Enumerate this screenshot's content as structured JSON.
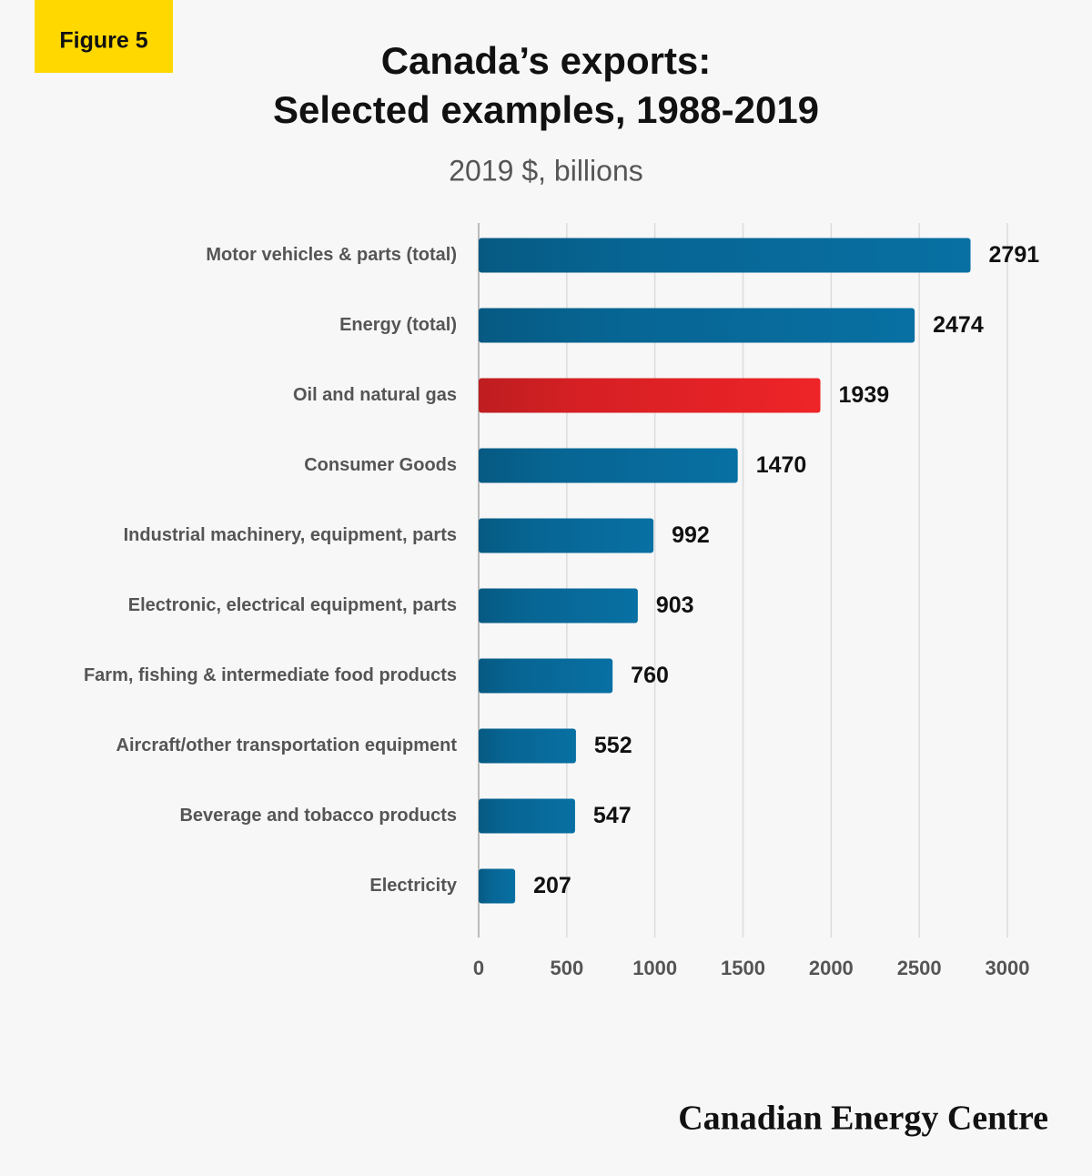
{
  "badge": "Figure 5",
  "footer": "Canadian Energy Centre",
  "chart_data": {
    "type": "bar",
    "orientation": "horizontal",
    "title": [
      "Canada’s exports:",
      "Selected examples, 1988-2019"
    ],
    "subtitle": "2019 $, billions",
    "categories": [
      "Motor vehicles & parts (total)",
      "Energy (total)",
      "Oil and natural gas",
      "Consumer Goods",
      "Industrial machinery, equipment, parts",
      "Electronic, electrical equipment, parts",
      "Farm, fishing & intermediate food products",
      "Aircraft/other transportation equipment",
      "Beverage and tobacco products",
      "Electricity"
    ],
    "values": [
      2791,
      2474,
      1939,
      1470,
      992,
      903,
      760,
      552,
      547,
      207
    ],
    "colors": [
      "#0870a3",
      "#0870a3",
      "#ee2428",
      "#0870a3",
      "#0870a3",
      "#0870a3",
      "#0870a3",
      "#0870a3",
      "#0870a3",
      "#0870a3"
    ],
    "xlim": [
      0,
      3000
    ],
    "xticks": [
      0,
      500,
      1000,
      1500,
      2000,
      2500,
      3000
    ],
    "grid": true
  }
}
